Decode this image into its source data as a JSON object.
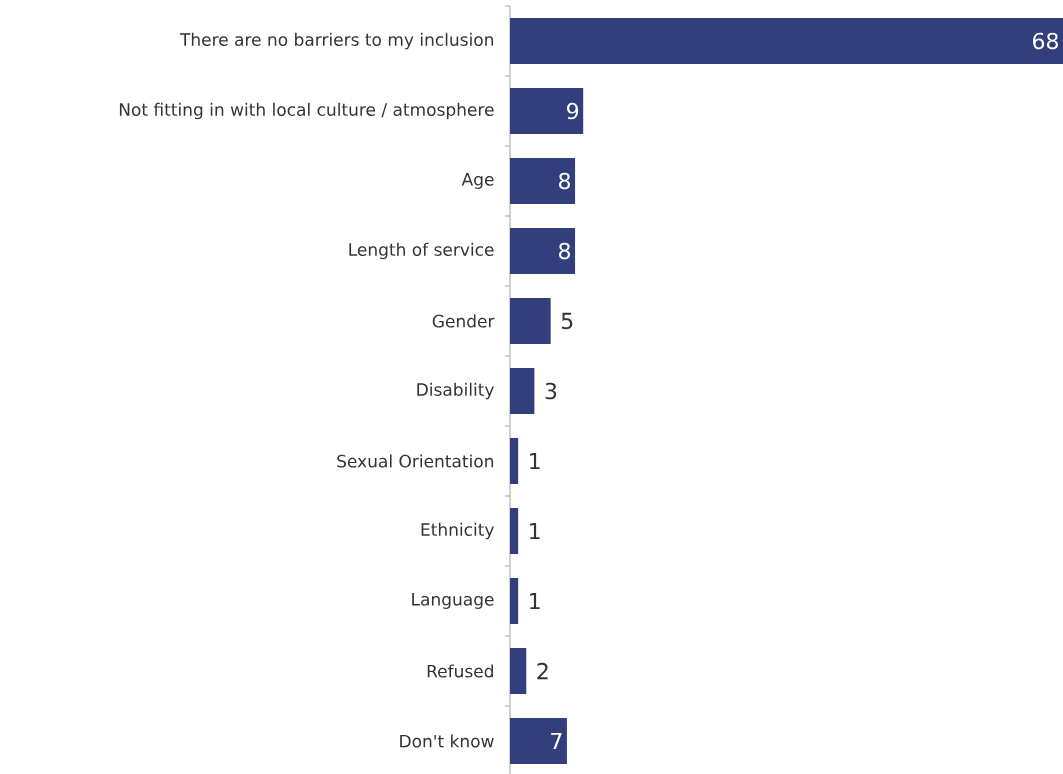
{
  "chart_data": {
    "type": "bar",
    "orientation": "horizontal",
    "data_labels": true,
    "color": "#333f7d",
    "categories": [
      "There are no barriers to my inclusion",
      "Not fitting in with local culture / atmosphere",
      "Age",
      "Length of service",
      "Gender",
      "Disability",
      "Sexual Orientation",
      "Ethnicity",
      "Language",
      "Refused",
      "Don't know"
    ],
    "values": [
      68,
      9,
      8,
      8,
      5,
      3,
      1,
      1,
      1,
      2,
      7
    ]
  }
}
